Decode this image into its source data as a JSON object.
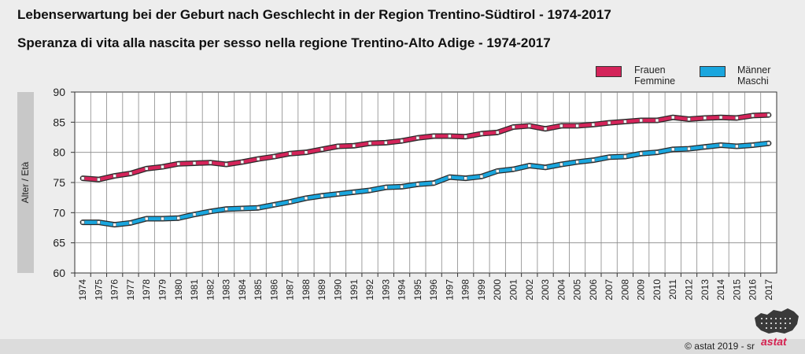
{
  "header": {
    "title_de": "Lebenserwartung bei der Geburt nach Geschlecht in der Region Trentino-Südtirol - 1974-2017",
    "title_it": "Speranza di vita alla nascita per sesso nella regione Trentino-Alto Adige - 1974-2017"
  },
  "axis": {
    "ylabel": "Alter / Età"
  },
  "legend": {
    "women_de": "Frauen",
    "women_it": "Femmine",
    "men_de": "Männer",
    "men_it": "Maschi"
  },
  "footer": {
    "copyright": "© astat 2019 - sr",
    "logo_text": "astat"
  },
  "colors": {
    "women": "#d4245a",
    "men": "#1aa6de",
    "plot_bg": "#ffffff",
    "page_bg": "#ededed"
  },
  "chart_data": {
    "type": "line",
    "title": "Lebenserwartung bei der Geburt nach Geschlecht in der Region Trentino-Südtirol - 1974-2017",
    "ylabel": "Alter / Età",
    "xlabel": "",
    "ylim": [
      60,
      90
    ],
    "yticks": [
      60,
      65,
      70,
      75,
      80,
      85,
      90
    ],
    "grid": true,
    "legend_position": "top-right",
    "x": [
      1974,
      1975,
      1976,
      1977,
      1978,
      1979,
      1980,
      1981,
      1982,
      1983,
      1984,
      1985,
      1986,
      1987,
      1988,
      1989,
      1990,
      1991,
      1992,
      1993,
      1994,
      1995,
      1996,
      1997,
      1998,
      1999,
      2000,
      2001,
      2002,
      2003,
      2004,
      2005,
      2006,
      2007,
      2008,
      2009,
      2010,
      2011,
      2012,
      2013,
      2014,
      2015,
      2016,
      2017
    ],
    "series": [
      {
        "name": "Frauen / Femmine",
        "values": [
          75.7,
          75.5,
          76.1,
          76.5,
          77.3,
          77.6,
          78.1,
          78.2,
          78.3,
          78.0,
          78.4,
          78.9,
          79.3,
          79.8,
          80.0,
          80.5,
          81.0,
          81.1,
          81.5,
          81.6,
          81.9,
          82.4,
          82.7,
          82.7,
          82.6,
          83.1,
          83.3,
          84.2,
          84.4,
          83.9,
          84.4,
          84.4,
          84.6,
          84.9,
          85.1,
          85.3,
          85.3,
          85.8,
          85.5,
          85.7,
          85.8,
          85.7,
          86.1,
          86.2
        ]
      },
      {
        "name": "Männer / Maschi",
        "values": [
          68.4,
          68.4,
          68.0,
          68.3,
          69.0,
          69.0,
          69.1,
          69.7,
          70.2,
          70.6,
          70.7,
          70.8,
          71.3,
          71.8,
          72.4,
          72.8,
          73.1,
          73.4,
          73.7,
          74.2,
          74.3,
          74.7,
          74.9,
          75.9,
          75.7,
          76.0,
          76.9,
          77.2,
          77.8,
          77.5,
          78.0,
          78.4,
          78.7,
          79.2,
          79.3,
          79.8,
          80.0,
          80.5,
          80.6,
          80.9,
          81.2,
          81.0,
          81.2,
          81.5
        ]
      }
    ]
  }
}
